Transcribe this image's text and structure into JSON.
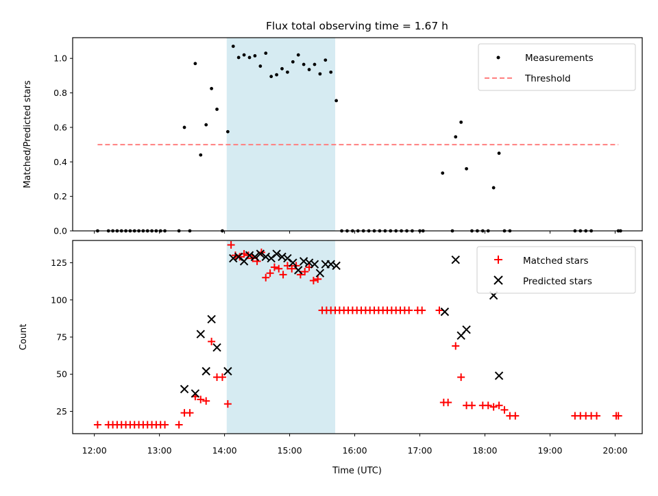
{
  "chart_data": [
    {
      "type": "scatter",
      "title": "Flux total observing time = 1.67 h",
      "xlabel": "",
      "ylabel": "Matched/Predicted stars",
      "ylim": [
        0,
        1.12
      ],
      "yticks": [
        "0.0",
        "0.2",
        "0.4",
        "0.6",
        "0.8",
        "1.0"
      ],
      "xlim": [
        "11:40",
        "20:25"
      ],
      "shaded_interval": [
        "14:02",
        "15:42"
      ],
      "shade_color": "#add8e6",
      "legend_position": "top-right",
      "series": [
        {
          "name": "Measurements",
          "color": "#000000",
          "marker": "dot",
          "x": [
            "12:03",
            "12:13",
            "12:18",
            "12:23",
            "12:28",
            "12:33",
            "12:38",
            "12:43",
            "12:48",
            "12:53",
            "12:58",
            "13:03",
            "13:08",
            "13:18",
            "13:23",
            "13:28",
            "13:33",
            "13:38",
            "13:43",
            "13:48",
            "13:53",
            "13:58",
            "14:03",
            "14:08",
            "14:13",
            "14:18",
            "14:23",
            "14:28",
            "14:33",
            "14:38",
            "14:43",
            "14:48",
            "14:53",
            "14:58",
            "15:03",
            "15:08",
            "15:13",
            "15:18",
            "15:23",
            "15:28",
            "15:33",
            "15:38",
            "15:43",
            "15:48",
            "15:53",
            "15:58",
            "16:03",
            "16:08",
            "16:13",
            "16:18",
            "16:23",
            "16:28",
            "16:33",
            "16:38",
            "16:43",
            "16:48",
            "16:58",
            "17:03",
            "17:18",
            "17:23",
            "17:28",
            "17:33",
            "17:38",
            "17:43",
            "17:48",
            "17:53",
            "17:58",
            "18:03",
            "18:08",
            "18:13",
            "18:18",
            "19:18",
            "19:23",
            "19:28",
            "19:33",
            "19:38",
            "19:43",
            "19:48",
            "19:53",
            "20:03"
          ],
          "y": [
            0,
            0,
            0,
            0,
            0,
            0,
            0,
            0,
            0,
            0,
            0,
            0,
            0,
            0,
            0.6,
            0,
            0.97,
            0.44,
            0.61,
            0.82,
            0.7,
            0,
            0.57,
            1.07,
            1.0,
            1.02,
            1.0,
            1.02,
            0.95,
            1.03,
            0.9,
            0.91,
            0.94,
            0.92,
            0.98,
            1.02,
            0.97,
            0.94,
            0.96,
            0.91,
            0.99,
            0.92,
            0.75,
            0,
            0,
            0,
            0,
            0,
            0,
            0,
            0,
            0,
            0,
            0,
            0,
            0,
            0,
            0,
            0,
            0.34,
            0,
            0.54,
            0.63,
            0.36,
            0,
            0,
            0,
            0,
            0.25,
            0.45,
            0,
            0,
            0,
            0,
            0,
            0,
            0,
            0,
            0,
            0
          ],
          "points_x": [
            "12:03",
            "12:13",
            "12:17",
            "12:21",
            "12:25",
            "12:29",
            "12:33",
            "12:37",
            "12:41",
            "12:45",
            "12:49",
            "12:53",
            "12:57",
            "13:01",
            "13:05",
            "13:18",
            "13:23",
            "13:28",
            "13:33",
            "13:38",
            "13:43",
            "13:48",
            "13:53",
            "13:58",
            "14:03",
            "14:08",
            "14:13",
            "14:18",
            "14:23",
            "14:28",
            "14:33",
            "14:38",
            "14:43",
            "14:48",
            "14:53",
            "14:58",
            "15:03",
            "15:08",
            "15:13",
            "15:18",
            "15:23",
            "15:28",
            "15:33",
            "15:38",
            "15:43",
            "15:48",
            "15:53",
            "15:58",
            "16:03",
            "16:08",
            "16:13",
            "16:18",
            "16:23",
            "16:28",
            "16:33",
            "16:38",
            "16:43",
            "16:48",
            "16:53",
            "17:00",
            "17:03",
            "17:21",
            "17:30",
            "17:33",
            "17:38",
            "17:43",
            "17:48",
            "17:53",
            "17:58",
            "18:03",
            "18:08",
            "18:13",
            "18:18",
            "18:23",
            "19:23",
            "19:28",
            "19:33",
            "19:38",
            "20:03",
            "20:05"
          ],
          "points_y": [
            0,
            0,
            0,
            0,
            0,
            0,
            0,
            0,
            0,
            0,
            0,
            0,
            0,
            0,
            0,
            0,
            0.6,
            0,
            0.97,
            0.44,
            0.615,
            0.825,
            0.705,
            0,
            0.575,
            1.07,
            1.005,
            1.02,
            1.005,
            1.015,
            0.955,
            1.03,
            0.895,
            0.905,
            0.94,
            0.92,
            0.98,
            1.02,
            0.965,
            0.935,
            0.965,
            0.91,
            0.99,
            0.92,
            0.755,
            0,
            0,
            0,
            0,
            0,
            0,
            0,
            0,
            0,
            0,
            0,
            0,
            0,
            0,
            0,
            0,
            0.335,
            0,
            0.545,
            0.63,
            0.36,
            0,
            0,
            0,
            0,
            0.25,
            0.45,
            0,
            0,
            0,
            0,
            0,
            0,
            0,
            0
          ]
        },
        {
          "name": "Threshold",
          "color": "#ff7f7f",
          "linestyle": "dashed",
          "x": [
            "12:03",
            "20:03"
          ],
          "y": [
            0.5,
            0.5
          ]
        }
      ]
    },
    {
      "type": "scatter",
      "title": "",
      "xlabel": "Time (UTC)",
      "ylabel": "Count",
      "ylim": [
        10,
        140
      ],
      "yticks": [
        "25",
        "50",
        "75",
        "100",
        "125"
      ],
      "xticks": [
        "12:00",
        "13:00",
        "14:00",
        "15:00",
        "16:00",
        "17:00",
        "18:00",
        "19:00",
        "20:00"
      ],
      "shaded_interval": [
        "14:02",
        "15:42"
      ],
      "legend_position": "top-right",
      "series": [
        {
          "name": "Matched stars",
          "color": "#ff0000",
          "marker": "plus",
          "x": [
            "12:03",
            "12:13",
            "12:17",
            "12:21",
            "12:25",
            "12:29",
            "12:33",
            "12:37",
            "12:41",
            "12:45",
            "12:49",
            "12:53",
            "12:57",
            "13:01",
            "13:05",
            "13:18",
            "13:23",
            "13:28",
            "13:33",
            "13:38",
            "13:43",
            "13:48",
            "13:53",
            "13:58",
            "14:03",
            "14:06",
            "14:10",
            "14:14",
            "14:18",
            "14:22",
            "14:26",
            "14:30",
            "14:34",
            "14:38",
            "14:42",
            "14:46",
            "14:50",
            "14:54",
            "14:58",
            "15:02",
            "15:06",
            "15:10",
            "15:14",
            "15:18",
            "15:22",
            "15:26",
            "15:30",
            "15:34",
            "15:38",
            "15:42",
            "15:46",
            "15:50",
            "15:54",
            "15:58",
            "16:02",
            "16:06",
            "16:10",
            "16:14",
            "16:18",
            "16:22",
            "16:26",
            "16:30",
            "16:34",
            "16:38",
            "16:42",
            "16:46",
            "16:50",
            "16:58",
            "17:02",
            "17:18",
            "17:22",
            "17:26",
            "17:33",
            "17:38",
            "17:43",
            "17:48",
            "17:58",
            "18:03",
            "18:08",
            "18:13",
            "18:18",
            "18:23",
            "18:28",
            "19:23",
            "19:28",
            "19:33",
            "19:38",
            "19:43",
            "20:01",
            "20:03"
          ],
          "y": [
            16,
            16,
            16,
            16,
            16,
            16,
            16,
            16,
            16,
            16,
            16,
            16,
            16,
            16,
            16,
            16,
            24,
            24,
            35,
            33,
            32,
            72,
            48,
            48,
            30,
            137,
            130,
            129,
            131,
            130,
            128,
            126,
            132,
            115,
            118,
            122,
            121,
            117,
            123,
            121,
            123,
            117,
            119,
            122,
            113,
            114,
            93,
            93,
            93,
            93,
            93,
            93,
            93,
            93,
            93,
            93,
            93,
            93,
            93,
            93,
            93,
            93,
            93,
            93,
            93,
            93,
            93,
            93,
            93,
            93,
            31,
            31,
            69,
            48,
            29,
            29,
            29,
            29,
            28,
            29,
            26,
            22,
            22,
            22,
            22,
            22,
            22,
            22,
            22,
            22
          ]
        },
        {
          "name": "Predicted stars",
          "color": "#000000",
          "marker": "x",
          "x": [
            "13:23",
            "13:33",
            "13:38",
            "13:43",
            "13:48",
            "13:53",
            "14:03",
            "14:08",
            "14:13",
            "14:18",
            "14:23",
            "14:28",
            "14:33",
            "14:38",
            "14:43",
            "14:48",
            "14:53",
            "14:58",
            "15:03",
            "15:08",
            "15:13",
            "15:18",
            "15:23",
            "15:28",
            "15:33",
            "15:38",
            "15:43",
            "17:23",
            "17:33",
            "17:38",
            "17:43",
            "18:08",
            "18:13"
          ],
          "y": [
            40,
            37,
            77,
            52,
            87,
            68,
            52,
            128,
            129,
            126,
            130,
            129,
            131,
            129,
            128,
            131,
            129,
            128,
            125,
            120,
            126,
            125,
            124,
            118,
            124,
            124,
            123,
            92,
            127,
            76,
            80,
            103,
            49
          ]
        }
      ]
    }
  ]
}
